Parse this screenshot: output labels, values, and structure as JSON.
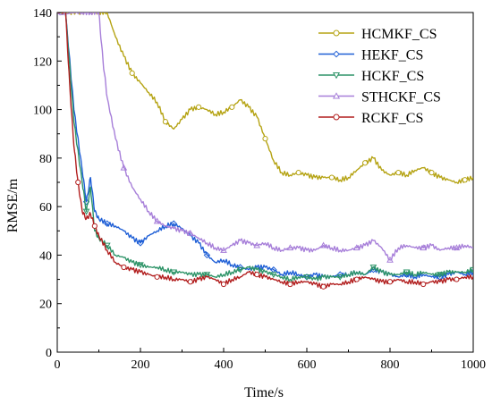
{
  "chart_data": {
    "type": "line",
    "xlabel": "Time/s",
    "ylabel": "RMSE/m",
    "xlim": [
      0,
      1000
    ],
    "ylim": [
      0,
      140
    ],
    "xticks": [
      0,
      200,
      400,
      600,
      800,
      1000
    ],
    "yticks": [
      0,
      20,
      40,
      60,
      80,
      100,
      120,
      140
    ],
    "grid": false,
    "legend_position": "top-right",
    "series": [
      {
        "name": "HCMKF_CS",
        "color": "#b5a313",
        "marker": "circle",
        "x": [
          0,
          25,
          50,
          75,
          100,
          120,
          140,
          160,
          180,
          200,
          220,
          240,
          260,
          280,
          300,
          320,
          340,
          360,
          380,
          400,
          420,
          440,
          460,
          480,
          500,
          520,
          540,
          560,
          580,
          600,
          620,
          640,
          660,
          680,
          700,
          720,
          740,
          760,
          780,
          800,
          820,
          840,
          860,
          880,
          900,
          920,
          940,
          960,
          980,
          1000
        ],
        "y": [
          140,
          140,
          140,
          140,
          140,
          140,
          130,
          122,
          115,
          111,
          107,
          103,
          95,
          92,
          96,
          100,
          101,
          100,
          98,
          99,
          101,
          104,
          101,
          97,
          88,
          79,
          74,
          73,
          74,
          73,
          72,
          72,
          72,
          71,
          72,
          75,
          78,
          80,
          75,
          73,
          74,
          73,
          75,
          76,
          74,
          72,
          71,
          70,
          71,
          72
        ]
      },
      {
        "name": "HEKF_CS",
        "color": "#1f5fd6",
        "marker": "diamond",
        "x": [
          0,
          20,
          40,
          60,
          70,
          80,
          90,
          100,
          120,
          140,
          160,
          180,
          200,
          220,
          240,
          260,
          280,
          300,
          320,
          340,
          360,
          380,
          400,
          420,
          440,
          460,
          480,
          500,
          520,
          540,
          560,
          580,
          600,
          620,
          640,
          660,
          680,
          700,
          720,
          740,
          760,
          780,
          800,
          820,
          840,
          860,
          880,
          900,
          920,
          940,
          960,
          980,
          1000
        ],
        "y": [
          140,
          140,
          100,
          75,
          62,
          72,
          58,
          55,
          53,
          52,
          50,
          47,
          45,
          48,
          50,
          52,
          53,
          51,
          48,
          45,
          40,
          37,
          38,
          36,
          35,
          34,
          35,
          35,
          34,
          32,
          33,
          32,
          31,
          32,
          31,
          31,
          32,
          32,
          33,
          32,
          34,
          33,
          32,
          31,
          32,
          31,
          32,
          31,
          31,
          32,
          33,
          32,
          33
        ]
      },
      {
        "name": "HCKF_CS",
        "color": "#2e9468",
        "marker": "triangle-down",
        "x": [
          0,
          20,
          40,
          60,
          70,
          80,
          90,
          100,
          120,
          140,
          160,
          180,
          200,
          220,
          240,
          260,
          280,
          300,
          320,
          340,
          360,
          380,
          400,
          420,
          440,
          460,
          480,
          500,
          520,
          540,
          560,
          580,
          600,
          620,
          640,
          660,
          680,
          700,
          720,
          740,
          760,
          780,
          800,
          820,
          840,
          860,
          880,
          900,
          920,
          940,
          960,
          980,
          1000
        ],
        "y": [
          140,
          140,
          95,
          70,
          58,
          68,
          50,
          47,
          44,
          40,
          39,
          37,
          36,
          35,
          35,
          34,
          33,
          33,
          32,
          32,
          32,
          31,
          32,
          33,
          34,
          35,
          34,
          33,
          32,
          31,
          30,
          31,
          31,
          30,
          31,
          31,
          31,
          32,
          33,
          32,
          35,
          33,
          32,
          32,
          33,
          32,
          33,
          32,
          32,
          33,
          33,
          33,
          34
        ]
      },
      {
        "name": "STHCKF_CS",
        "color": "#a77fd9",
        "marker": "triangle-up",
        "x": [
          0,
          40,
          60,
          80,
          100,
          110,
          120,
          140,
          160,
          180,
          200,
          220,
          240,
          260,
          280,
          300,
          320,
          340,
          360,
          380,
          400,
          420,
          440,
          460,
          480,
          500,
          520,
          540,
          560,
          580,
          600,
          620,
          640,
          660,
          680,
          700,
          720,
          740,
          760,
          780,
          800,
          820,
          840,
          860,
          880,
          900,
          920,
          940,
          960,
          980,
          1000
        ],
        "y": [
          140,
          140,
          140,
          140,
          140,
          120,
          105,
          88,
          76,
          68,
          63,
          58,
          54,
          52,
          51,
          50,
          49,
          47,
          45,
          43,
          42,
          44,
          46,
          45,
          44,
          45,
          43,
          42,
          43,
          43,
          42,
          42,
          44,
          43,
          42,
          42,
          43,
          44,
          46,
          43,
          38,
          43,
          44,
          43,
          43,
          44,
          42,
          43,
          43,
          44,
          43
        ]
      },
      {
        "name": "RCKF_CS",
        "color": "#b21f1f",
        "marker": "circle",
        "x": [
          0,
          20,
          30,
          40,
          50,
          60,
          70,
          80,
          90,
          100,
          120,
          140,
          160,
          180,
          200,
          220,
          240,
          260,
          280,
          300,
          320,
          340,
          360,
          380,
          400,
          420,
          440,
          460,
          480,
          500,
          520,
          540,
          560,
          580,
          600,
          620,
          640,
          660,
          680,
          700,
          720,
          740,
          760,
          780,
          800,
          820,
          840,
          860,
          880,
          900,
          920,
          940,
          960,
          980,
          1000
        ],
        "y": [
          140,
          140,
          110,
          85,
          70,
          58,
          55,
          57,
          52,
          48,
          42,
          37,
          35,
          34,
          33,
          32,
          31,
          31,
          30,
          30,
          29,
          30,
          31,
          30,
          28,
          30,
          31,
          33,
          32,
          31,
          30,
          29,
          28,
          29,
          29,
          28,
          27,
          28,
          28,
          29,
          30,
          31,
          30,
          29,
          29,
          30,
          29,
          29,
          28,
          29,
          29,
          30,
          30,
          31,
          31
        ]
      }
    ]
  }
}
